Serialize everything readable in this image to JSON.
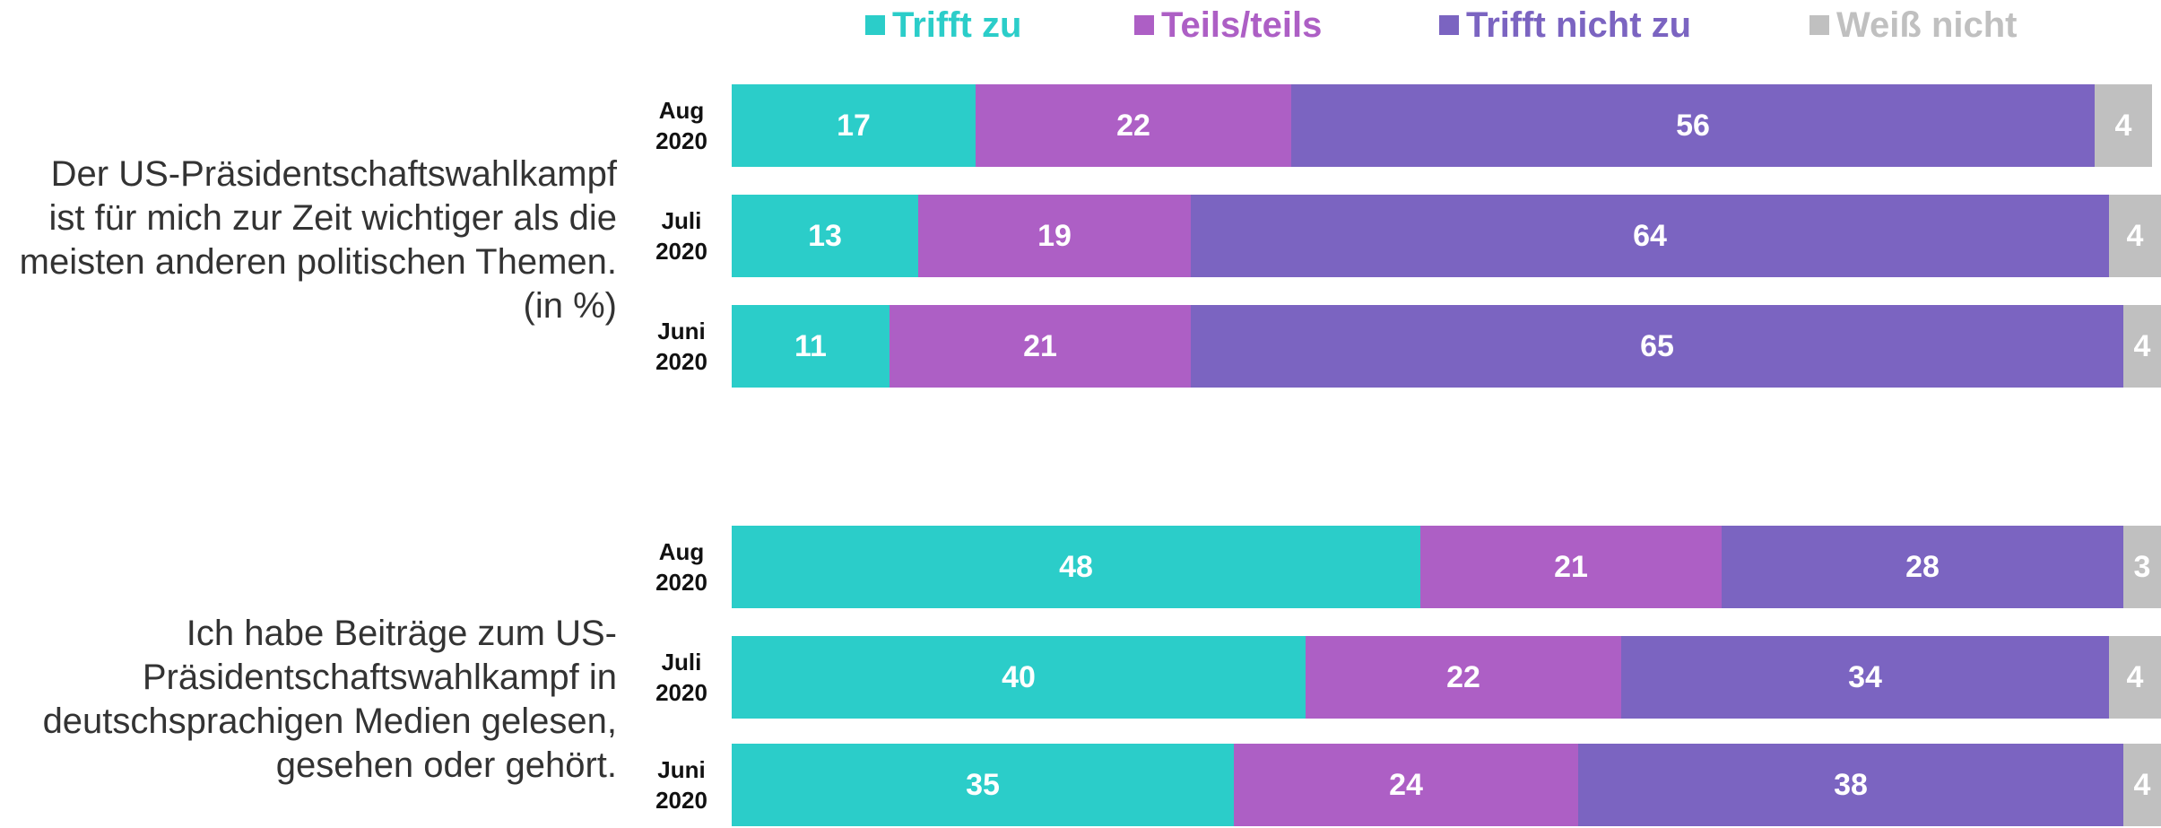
{
  "chart_data": [
    {
      "type": "bar",
      "orientation": "horizontal",
      "stacked": true,
      "legend": "top",
      "label": "Der US-Präsidentschaftswahlkampf ist für mich zur Zeit wichtiger als die meisten anderen politischen Themen. (in %)",
      "categories": [
        "Aug 2020",
        "Juli 2020",
        "Juni 2020"
      ],
      "series": [
        {
          "name": "Trifft zu",
          "color": "#2bcdc9",
          "values": [
            17,
            13,
            11
          ]
        },
        {
          "name": "Teils/teils",
          "color": "#ad5fc5",
          "values": [
            22,
            19,
            21
          ]
        },
        {
          "name": "Trifft nicht zu",
          "color": "#7b64c1",
          "values": [
            56,
            64,
            65
          ]
        },
        {
          "name": "Weiß nicht",
          "color": "#c0c0c0",
          "values": [
            4,
            4,
            4
          ]
        }
      ]
    },
    {
      "type": "bar",
      "orientation": "horizontal",
      "stacked": true,
      "label": "Ich habe Beiträge zum US-Präsidentschaftswahlkampf in deutschsprachigen Medien gelesen, gesehen oder gehört.",
      "categories": [
        "Aug 2020",
        "Juli 2020",
        "Juni 2020"
      ],
      "series": [
        {
          "color": "#2bcdc9",
          "values": [
            48,
            40,
            35
          ]
        },
        {
          "color": "#ad5fc5",
          "values": [
            21,
            22,
            24
          ]
        },
        {
          "color": "#7b64c1",
          "values": [
            28,
            34,
            38
          ]
        },
        {
          "color": "#c0c0c0",
          "values": [
            3,
            4,
            4
          ]
        }
      ]
    }
  ]
}
